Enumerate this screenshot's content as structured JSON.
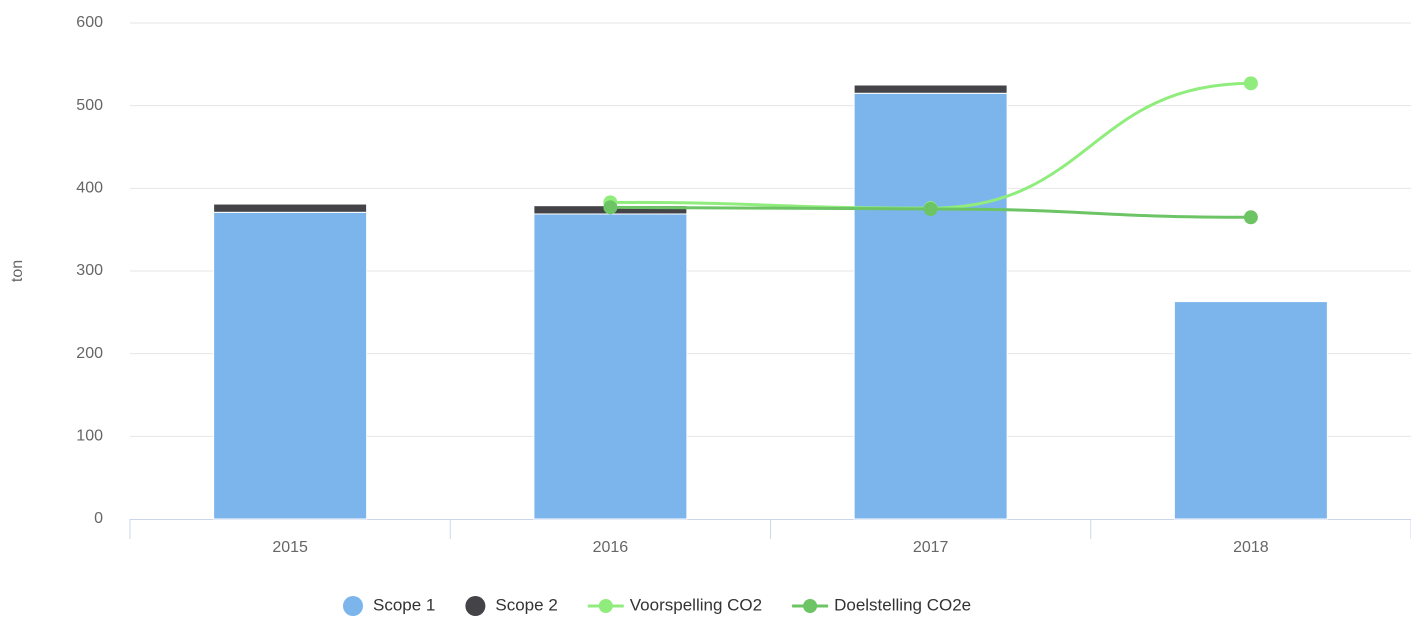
{
  "chart_data": {
    "type": "bar",
    "y_label": "ton",
    "categories": [
      "2015",
      "2016",
      "2017",
      "2018"
    ],
    "series": [
      {
        "name": "Scope 1",
        "type": "bar",
        "color": "#7cb5ec",
        "values": [
          371,
          369,
          515,
          263
        ]
      },
      {
        "name": "Scope 2",
        "type": "bar",
        "color": "#434348",
        "values": [
          10,
          10,
          10,
          0
        ]
      },
      {
        "name": "Voorspelling CO2",
        "type": "line",
        "color": "#90ed7d",
        "values": [
          null,
          383,
          376,
          527
        ]
      },
      {
        "name": "Doelstelling CO2e",
        "type": "line",
        "color": "#6cc465",
        "values": [
          null,
          377,
          375,
          365
        ]
      }
    ],
    "stacked": true,
    "ylim": [
      0,
      600
    ],
    "yticks": [
      0,
      100,
      200,
      300,
      400,
      500,
      600
    ],
    "grid": true,
    "legend": "bottom"
  }
}
